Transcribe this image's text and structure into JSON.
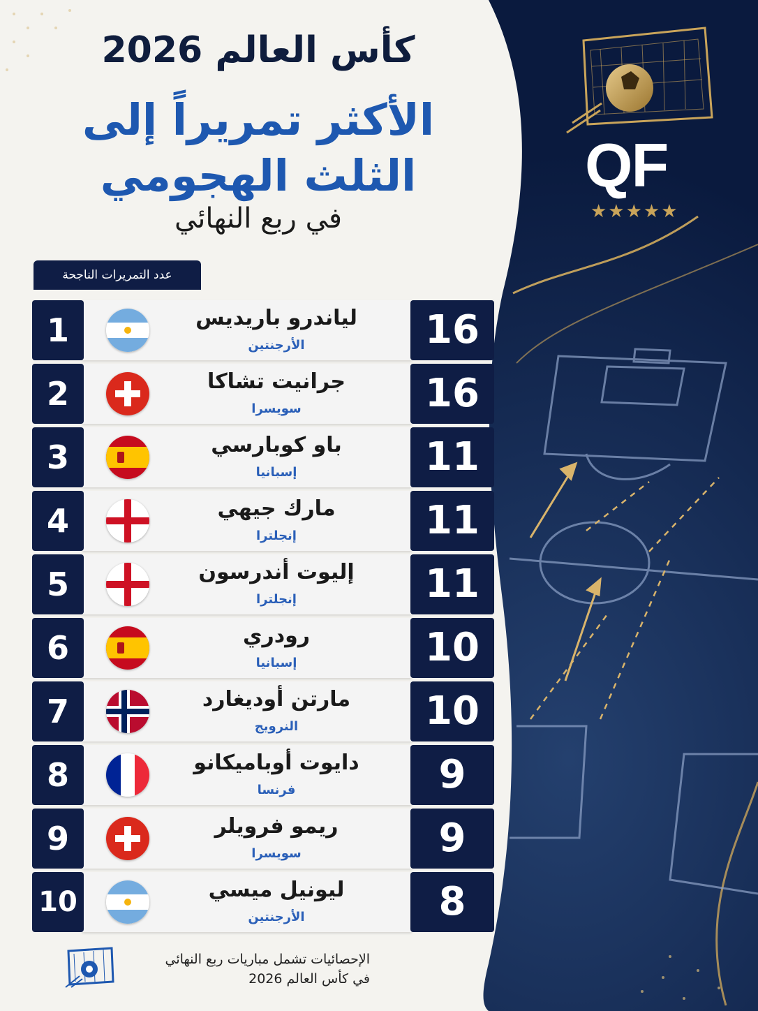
{
  "header": {
    "line1": "كأس العالم 2026",
    "line2a": "الأكثر تمريراً إلى",
    "line2b": "الثلث الهجومي",
    "line3": "في ربع النهائي"
  },
  "badge": {
    "text": "QF",
    "stars": "★★★★★"
  },
  "column_header": "عدد التمريرات الناجحة",
  "rows": [
    {
      "rank": "1",
      "name": "لياندرو باريديس",
      "country": "الأرجنتين",
      "flag": "argentina",
      "value": "16"
    },
    {
      "rank": "2",
      "name": "جرانيت تشاكا",
      "country": "سويسرا",
      "flag": "switzerland",
      "value": "16"
    },
    {
      "rank": "3",
      "name": "باو كوبارسي",
      "country": "إسبانيا",
      "flag": "spain",
      "value": "11"
    },
    {
      "rank": "4",
      "name": "مارك جيهي",
      "country": "إنجلترا",
      "flag": "england",
      "value": "11"
    },
    {
      "rank": "5",
      "name": "إليوت أندرسون",
      "country": "إنجلترا",
      "flag": "england",
      "value": "11"
    },
    {
      "rank": "6",
      "name": "رودري",
      "country": "إسبانيا",
      "flag": "spain",
      "value": "10"
    },
    {
      "rank": "7",
      "name": "مارتن أوديغارد",
      "country": "النرويج",
      "flag": "norway",
      "value": "10"
    },
    {
      "rank": "8",
      "name": "دايوت أوباميكانو",
      "country": "فرنسا",
      "flag": "france",
      "value": "9"
    },
    {
      "rank": "9",
      "name": "ريمو فرويلر",
      "country": "سويسرا",
      "flag": "switzerland",
      "value": "9"
    },
    {
      "rank": "10",
      "name": "ليونيل ميسي",
      "country": "الأرجنتين",
      "flag": "argentina",
      "value": "8"
    }
  ],
  "footer": {
    "line1": "الإحصائيات تشمل مباريات ربع النهائي",
    "line2": "في كأس العالم 2026"
  },
  "colors": {
    "navy": "#0f1d45",
    "blue_text": "#1e58b0",
    "gold": "#c9a45a",
    "panel": "#f4f3ef"
  }
}
